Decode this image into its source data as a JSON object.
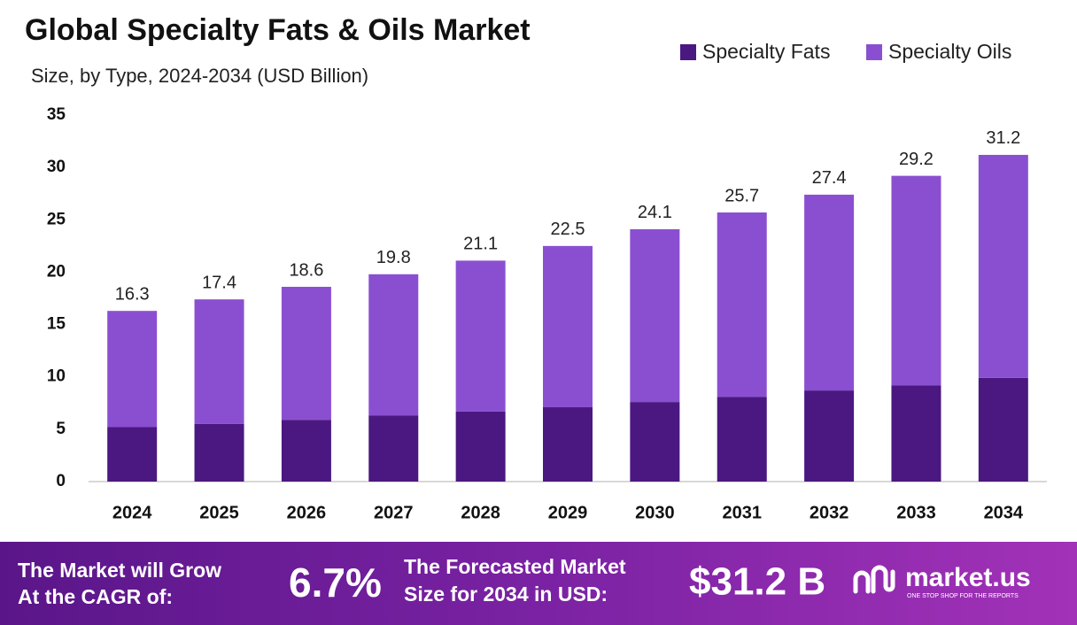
{
  "chart_data": {
    "type": "stacked-bar",
    "title": "Global Specialty Fats & Oils Market",
    "subtitle": "Size, by Type, 2024-2034 (USD Billion)",
    "categories": [
      "2024",
      "2025",
      "2026",
      "2027",
      "2028",
      "2029",
      "2030",
      "2031",
      "2032",
      "2033",
      "2034"
    ],
    "series": [
      {
        "name": "Specialty Fats",
        "color": "#4a1880",
        "values": [
          5.2,
          5.5,
          5.9,
          6.3,
          6.7,
          7.1,
          7.6,
          8.1,
          8.7,
          9.2,
          9.9
        ]
      },
      {
        "name": "Specialty Oils",
        "color": "#8a4fd1",
        "values": [
          11.1,
          11.9,
          12.7,
          13.5,
          14.4,
          15.4,
          16.5,
          17.6,
          18.7,
          20.0,
          21.3
        ]
      }
    ],
    "totals": [
      16.3,
      17.4,
      18.6,
      19.8,
      21.1,
      22.5,
      24.1,
      25.7,
      27.4,
      29.2,
      31.2
    ],
    "ylim": [
      0,
      35
    ],
    "yticks": [
      0,
      5,
      10,
      15,
      20,
      25,
      30,
      35
    ],
    "grid": false,
    "legend": "top-right"
  },
  "footer": {
    "cagr_text": [
      "The Market will Grow",
      "At the CAGR of:"
    ],
    "cagr": "6.7%",
    "forecast_text": [
      "The Forecasted Market",
      "Size for 2034 in USD:"
    ],
    "forecast": "$31.2 B",
    "brand": "market.us",
    "tagline": "ONE STOP SHOP FOR THE REPORTS"
  }
}
